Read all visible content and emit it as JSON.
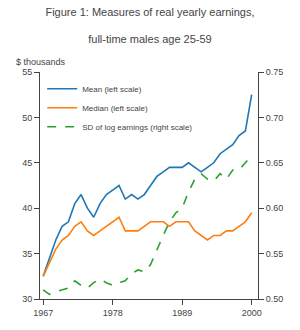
{
  "chart_data": {
    "type": "line",
    "title": "Figure 1: Measures of real yearly earnings,",
    "subtitle": "full-time males age 25-59",
    "ylabel": "$ thousands",
    "x": [
      1967,
      1968,
      1969,
      1970,
      1971,
      1972,
      1973,
      1974,
      1975,
      1976,
      1977,
      1978,
      1979,
      1980,
      1981,
      1982,
      1983,
      1984,
      1985,
      1986,
      1987,
      1988,
      1989,
      1990,
      1991,
      1992,
      1993,
      1994,
      1995,
      1996,
      1997,
      1998,
      1999,
      2000
    ],
    "series": [
      {
        "name": "Mean (left scale)",
        "line_style": "solid",
        "values": [
          32.5,
          34.5,
          36.5,
          38.0,
          38.5,
          40.5,
          41.5,
          40.0,
          39.0,
          40.5,
          41.5,
          42.0,
          42.5,
          41.0,
          41.5,
          41.0,
          41.5,
          42.5,
          43.5,
          44.0,
          44.5,
          44.5,
          44.5,
          45.0,
          44.5,
          44.0,
          44.5,
          45.0,
          46.0,
          46.5,
          47.0,
          48.0,
          48.5,
          52.5
        ]
      },
      {
        "name": "Median (left scale)",
        "line_style": "solid",
        "values": [
          32.5,
          34.0,
          35.5,
          36.5,
          37.0,
          38.0,
          38.5,
          37.5,
          37.0,
          37.5,
          38.0,
          38.5,
          39.0,
          37.5,
          37.5,
          37.5,
          38.0,
          38.5,
          38.5,
          38.5,
          38.0,
          38.5,
          38.5,
          38.5,
          37.5,
          37.0,
          36.5,
          37.0,
          37.0,
          37.5,
          37.5,
          38.0,
          38.5,
          39.5
        ]
      },
      {
        "name": "SD of log earnings (right scale)",
        "line_style": "dashed",
        "axis": "y2",
        "values": [
          0.51,
          0.505,
          0.508,
          0.51,
          0.512,
          0.52,
          0.515,
          0.512,
          0.518,
          0.522,
          0.518,
          0.515,
          0.518,
          0.52,
          0.528,
          0.532,
          0.53,
          0.538,
          0.555,
          0.57,
          0.585,
          0.595,
          0.6,
          0.618,
          0.632,
          0.638,
          0.632,
          0.63,
          0.638,
          0.632,
          0.642,
          0.642,
          0.65,
          0.658
        ]
      }
    ],
    "xlim": [
      1966.5,
      2001
    ],
    "xticks": [
      1967,
      1978,
      1989,
      2000
    ],
    "ylim": [
      30,
      55
    ],
    "yticks": [
      30,
      35,
      40,
      45,
      50,
      55
    ],
    "y2lim": [
      0.5,
      0.75
    ],
    "y2ticks": [
      {
        "value": 0.5,
        "label": "0.50"
      },
      0.55,
      {
        "value": 0.6,
        "label": "0.60"
      },
      0.65,
      {
        "value": 0.7,
        "label": "0.70"
      },
      0.75
    ],
    "grid": false,
    "legend": "upper left"
  }
}
